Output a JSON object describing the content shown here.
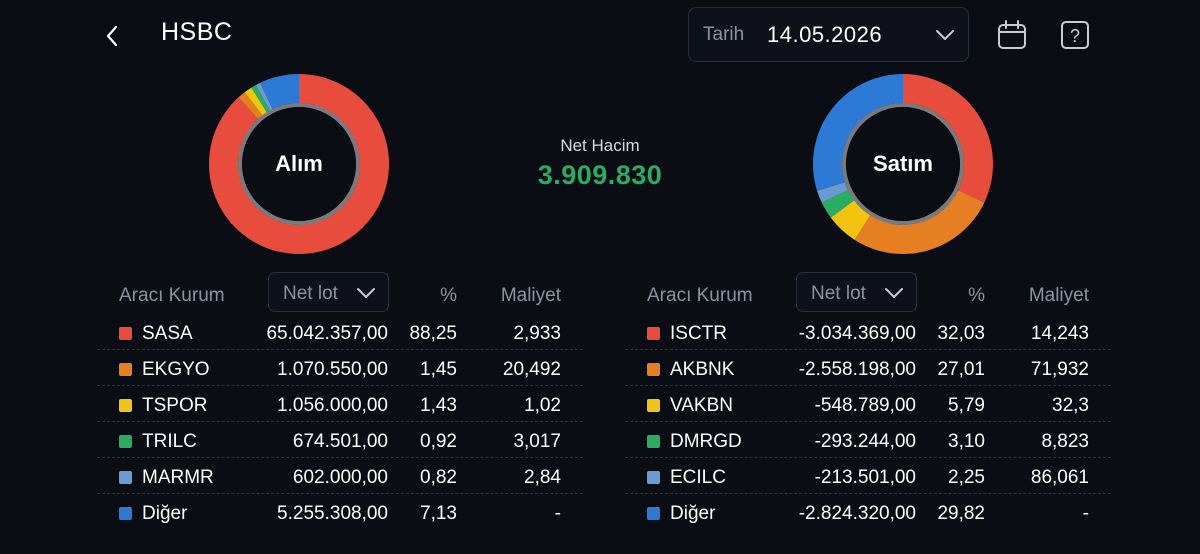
{
  "header": {
    "title": "HSBC",
    "date_label": "Tarih",
    "date_value": "14.05.2026"
  },
  "summary": {
    "buy_label": "Alım",
    "sell_label": "Satım",
    "net_label": "Net Hacim",
    "net_value": "3.909.830"
  },
  "colors": {
    "red": "#e74c3c",
    "orange": "#e67e22",
    "yellow": "#f1c40f",
    "green": "#27ae60",
    "lightblue": "#6c9bd2",
    "blue": "#2d7ad6",
    "accent_green": "#27ae60"
  },
  "buy": {
    "headers": {
      "broker": "Aracı Kurum",
      "lot": "Net lot",
      "pct": "%",
      "cost": "Maliyet"
    },
    "rows": [
      {
        "name": "SASA",
        "lot": "65.042.357,00",
        "pct": "88,25",
        "cost": "2,933",
        "color": "#e74c3c"
      },
      {
        "name": "EKGYO",
        "lot": "1.070.550,00",
        "pct": "1,45",
        "cost": "20,492",
        "color": "#e67e22"
      },
      {
        "name": "TSPOR",
        "lot": "1.056.000,00",
        "pct": "1,43",
        "cost": "1,02",
        "color": "#f1c40f"
      },
      {
        "name": "TRILC",
        "lot": "674.501,00",
        "pct": "0,92",
        "cost": "3,017",
        "color": "#27ae60"
      },
      {
        "name": "MARMR",
        "lot": "602.000,00",
        "pct": "0,82",
        "cost": "2,84",
        "color": "#6c9bd2"
      },
      {
        "name": "Diğer",
        "lot": "5.255.308,00",
        "pct": "7,13",
        "cost": "-",
        "color": "#2d7ad6"
      }
    ]
  },
  "sell": {
    "headers": {
      "broker": "Aracı Kurum",
      "lot": "Net lot",
      "pct": "%",
      "cost": "Maliyet"
    },
    "rows": [
      {
        "name": "ISCTR",
        "lot": "-3.034.369,00",
        "pct": "32,03",
        "cost": "14,243",
        "color": "#e74c3c"
      },
      {
        "name": "AKBNK",
        "lot": "-2.558.198,00",
        "pct": "27,01",
        "cost": "71,932",
        "color": "#e67e22"
      },
      {
        "name": "VAKBN",
        "lot": "-548.789,00",
        "pct": "5,79",
        "cost": "32,3",
        "color": "#f1c40f"
      },
      {
        "name": "DMRGD",
        "lot": "-293.244,00",
        "pct": "3,10",
        "cost": "8,823",
        "color": "#27ae60"
      },
      {
        "name": "ECILC",
        "lot": "-213.501,00",
        "pct": "2,25",
        "cost": "86,061",
        "color": "#6c9bd2"
      },
      {
        "name": "Diğer",
        "lot": "-2.824.320,00",
        "pct": "29,82",
        "cost": "-",
        "color": "#2d7ad6"
      }
    ]
  },
  "chart_data": [
    {
      "type": "pie",
      "title": "Alım",
      "categories": [
        "SASA",
        "EKGYO",
        "TSPOR",
        "TRILC",
        "MARMR",
        "Diğer"
      ],
      "values": [
        88.25,
        1.45,
        1.43,
        0.92,
        0.82,
        7.13
      ]
    },
    {
      "type": "pie",
      "title": "Satım",
      "categories": [
        "ISCTR",
        "AKBNK",
        "VAKBN",
        "DMRGD",
        "ECILC",
        "Diğer"
      ],
      "values": [
        32.03,
        27.01,
        5.79,
        3.1,
        2.25,
        29.82
      ]
    }
  ]
}
